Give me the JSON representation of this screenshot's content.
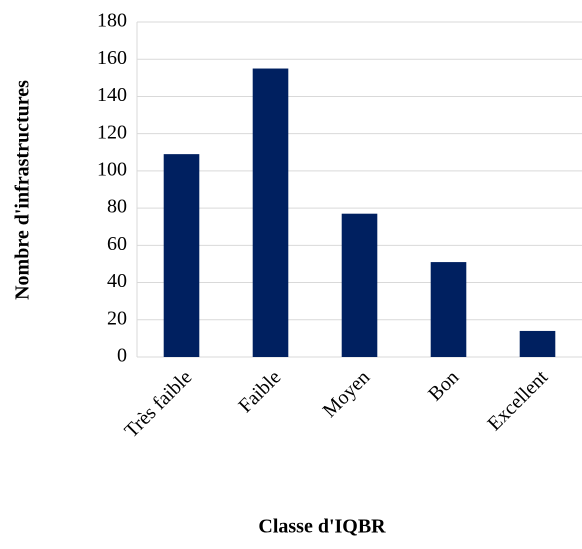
{
  "chart_data": {
    "type": "bar",
    "categories": [
      "Très faible",
      "Faible",
      "Moyen",
      "Bon",
      "Excellent"
    ],
    "values": [
      109,
      155,
      77,
      51,
      14
    ],
    "color": "#002060",
    "ylim": [
      0,
      180
    ],
    "yticks": [
      0,
      20,
      40,
      60,
      80,
      100,
      120,
      140,
      160,
      180
    ],
    "grid": true,
    "x_label": "Classe d'IQBR",
    "y_label": "Nombre d'infrastructures"
  }
}
